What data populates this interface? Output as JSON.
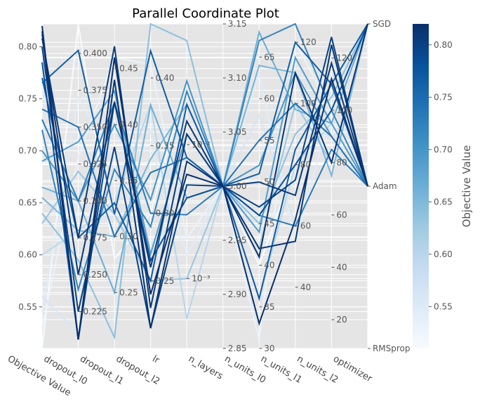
{
  "chart_data": {
    "type": "parallel_coordinates",
    "title": "Parallel Coordinate Plot",
    "grid": true,
    "colorbar": {
      "label": "Objective Value",
      "colormap": "Blues",
      "range": [
        0.51,
        0.82
      ],
      "ticks": [
        "0.55",
        "0.60",
        "0.65",
        "0.70",
        "0.75",
        "0.80"
      ],
      "tick_values": [
        0.55,
        0.6,
        0.65,
        0.7,
        0.75,
        0.8
      ]
    },
    "axes": [
      {
        "name": "Objective Value",
        "range": [
          0.51,
          0.822
        ],
        "ticks": [
          "0.55",
          "0.60",
          "0.65",
          "0.70",
          "0.75",
          "0.80"
        ],
        "tick_values": [
          0.55,
          0.6,
          0.65,
          0.7,
          0.75,
          0.8
        ]
      },
      {
        "name": "dropout_l0",
        "range": [
          0.2,
          0.42
        ],
        "ticks": [
          "0.225",
          "0.250",
          "0.275",
          "0.300",
          "0.325",
          "0.350",
          "0.375",
          "0.400"
        ],
        "tick_values": [
          0.225,
          0.25,
          0.275,
          0.3,
          0.325,
          0.35,
          0.375,
          0.4
        ]
      },
      {
        "name": "dropout_l1",
        "range": [
          0.2,
          0.49
        ],
        "ticks": [
          "0.25",
          "0.30",
          "0.35",
          "0.40",
          "0.45"
        ],
        "tick_values": [
          0.25,
          0.3,
          0.35,
          0.4,
          0.45
        ]
      },
      {
        "name": "dropout_l2",
        "range": [
          0.2,
          0.44
        ],
        "ticks": [
          "0.25",
          "0.30",
          "0.35",
          "0.40"
        ],
        "tick_values": [
          0.25,
          0.3,
          0.35,
          0.4
        ]
      },
      {
        "name": "lr",
        "scale": "log",
        "range": [
          0.0003,
          0.08
        ],
        "ticks": [
          "10⁻³",
          "10⁻²"
        ],
        "tick_values": [
          0.001,
          0.01
        ]
      },
      {
        "name": "n_layers",
        "range": [
          2.85,
          3.15
        ],
        "ticks": [
          "2.85",
          "2.90",
          "2.95",
          "3.00",
          "3.05",
          "3.10",
          "3.15"
        ],
        "tick_values": [
          2.85,
          2.9,
          2.95,
          3.0,
          3.05,
          3.1,
          3.15
        ]
      },
      {
        "name": "n_units_l0",
        "range": [
          30,
          69
        ],
        "ticks": [
          "30",
          "35",
          "40",
          "45",
          "50",
          "55",
          "60",
          "65"
        ],
        "tick_values": [
          30,
          35,
          40,
          45,
          50,
          55,
          60,
          65
        ]
      },
      {
        "name": "n_units_l1",
        "range": [
          20,
          126
        ],
        "ticks": [
          "40",
          "60",
          "80",
          "100",
          "120"
        ],
        "tick_values": [
          40,
          60,
          80,
          100,
          120
        ]
      },
      {
        "name": "n_units_l2",
        "range": [
          9,
          133
        ],
        "ticks": [
          "20",
          "40",
          "60",
          "80",
          "100",
          "120"
        ],
        "tick_values": [
          20,
          40,
          60,
          80,
          100,
          120
        ]
      },
      {
        "name": "optimizer",
        "categorical": true,
        "range": [
          0,
          2
        ],
        "ticks": [
          "RMSprop",
          "Adam",
          "SGD"
        ],
        "tick_values": [
          0,
          1,
          2
        ]
      }
    ],
    "trials": [
      {
        "values": [
          0.82,
          0.206,
          0.46,
          0.24,
          0.006,
          3.0,
          33.0,
          62,
          112,
          1
        ]
      },
      {
        "values": [
          0.815,
          0.206,
          0.44,
          0.215,
          0.0075,
          3.0,
          41.0,
          110,
          80,
          2
        ]
      },
      {
        "values": [
          0.812,
          0.25,
          0.42,
          0.26,
          0.015,
          3.0,
          42.0,
          55,
          125,
          1
        ]
      },
      {
        "values": [
          0.808,
          0.275,
          0.47,
          0.23,
          0.012,
          3.0,
          50.0,
          70,
          118,
          1
        ]
      },
      {
        "values": [
          0.8,
          0.225,
          0.38,
          0.215,
          0.005,
          3.0,
          47.0,
          75,
          128,
          1
        ]
      },
      {
        "values": [
          0.785,
          0.206,
          0.42,
          0.265,
          0.004,
          3.0,
          46.0,
          80,
          100,
          2
        ]
      },
      {
        "values": [
          0.77,
          0.275,
          0.33,
          0.25,
          0.02,
          3.0,
          36.0,
          85,
          110,
          1
        ]
      },
      {
        "values": [
          0.765,
          0.402,
          0.32,
          0.42,
          0.008,
          3.0,
          51.0,
          120,
          110,
          2
        ]
      },
      {
        "values": [
          0.74,
          0.35,
          0.3,
          0.33,
          0.008,
          3.0,
          55.0,
          100,
          90,
          1
        ]
      },
      {
        "values": [
          0.73,
          0.3,
          0.42,
          0.3,
          0.003,
          3.0,
          46.0,
          60,
          85,
          1
        ]
      },
      {
        "values": [
          0.72,
          0.24,
          0.36,
          0.29,
          0.025,
          3.0,
          67.0,
          126,
          100,
          1
        ]
      },
      {
        "values": [
          0.7,
          0.3,
          0.4,
          0.31,
          0.03,
          3.0,
          52.0,
          110,
          90,
          1
        ]
      },
      {
        "values": [
          0.69,
          0.34,
          0.43,
          0.27,
          0.012,
          3.0,
          44.0,
          115,
          95,
          1
        ]
      },
      {
        "values": [
          0.665,
          0.3,
          0.25,
          0.38,
          0.004,
          3.0,
          68.0,
          98,
          95,
          2
        ]
      },
      {
        "values": [
          0.655,
          0.28,
          0.3,
          0.34,
          0.02,
          3.0,
          64.0,
          110,
          75,
          2
        ]
      },
      {
        "values": [
          0.64,
          0.26,
          0.21,
          0.44,
          0.06,
          3.0,
          45.0,
          90,
          105,
          2
        ]
      },
      {
        "values": [
          0.63,
          0.32,
          0.32,
          0.25,
          0.001,
          3.0,
          42.0,
          100,
          80,
          2
        ]
      },
      {
        "values": [
          0.6,
          0.28,
          0.33,
          0.38,
          0.0005,
          3.0,
          36.0,
          80,
          95,
          2
        ]
      },
      {
        "values": [
          0.56,
          0.21,
          0.42,
          0.36,
          0.003,
          3.0,
          58.0,
          60,
          85,
          1
        ]
      },
      {
        "values": [
          0.545,
          0.37,
          0.37,
          0.35,
          0.0015,
          3.0,
          63.0,
          55,
          100,
          1
        ]
      },
      {
        "values": [
          0.53,
          0.33,
          0.46,
          0.41,
          0.002,
          3.0,
          31.0,
          120,
          100,
          2
        ]
      },
      {
        "values": [
          0.51,
          0.42,
          0.28,
          0.3,
          0.03,
          3.0,
          40.0,
          80,
          80,
          2
        ]
      }
    ]
  }
}
